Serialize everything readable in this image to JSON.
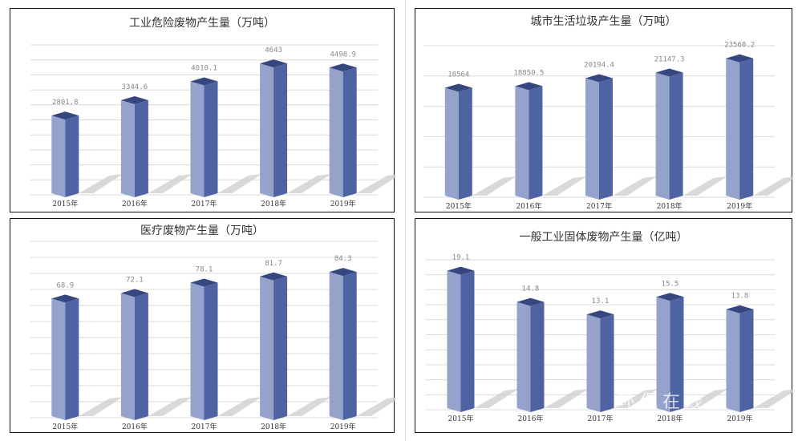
{
  "chart_data": [
    {
      "type": "bar",
      "title": "工业危险废物产生量（万吨）",
      "categories": [
        "2015年",
        "2016年",
        "2017年",
        "2018年",
        "2019年"
      ],
      "values": [
        2801.8,
        3344.6,
        4010.1,
        4643,
        4498.9
      ],
      "value_labels": [
        "2801.8",
        "3344.6",
        "4010.1",
        "4643",
        "4498.9"
      ],
      "ylim": [
        0,
        5300
      ],
      "grid": true
    },
    {
      "type": "bar",
      "title": "城市生活垃圾产生量（万吨）",
      "categories": [
        "2015年",
        "2016年",
        "2017年",
        "2018年",
        "2019年"
      ],
      "values": [
        18564,
        18850.5,
        20194.4,
        21147.3,
        23560.2
      ],
      "value_labels": [
        "18564",
        "18850.5",
        "20194.4",
        "21147.3",
        "23560.2"
      ],
      "ylim": [
        0,
        25700
      ],
      "grid": true
    },
    {
      "type": "bar",
      "title": "医疗废物产生量（万吨）",
      "categories": [
        "2015年",
        "2016年",
        "2017年",
        "2018年",
        "2019年"
      ],
      "values": [
        68.9,
        72.1,
        78.1,
        81.7,
        84.3
      ],
      "value_labels": [
        "68.9",
        "72.1",
        "78.1",
        "81.7",
        "84.3"
      ],
      "ylim": [
        0,
        102
      ],
      "grid": true
    },
    {
      "type": "bar",
      "title": "一般工业固体废物产生量（亿吨）",
      "categories": [
        "2015年",
        "2016年",
        "2017年",
        "2018年",
        "2019年"
      ],
      "values": [
        19.1,
        14.8,
        13.1,
        15.5,
        13.8
      ],
      "value_labels": [
        "19.1",
        "14.8",
        "13.1",
        "15.5",
        "13.8"
      ],
      "ylim": [
        0,
        20.6
      ],
      "grid": true
    }
  ],
  "colors": {
    "front": "#94a2cc",
    "side": "#4f63a2",
    "top": "#36467e",
    "grid": "#d9d9d9",
    "shadow": "#cfcfcf"
  },
  "watermark": "环保在线"
}
